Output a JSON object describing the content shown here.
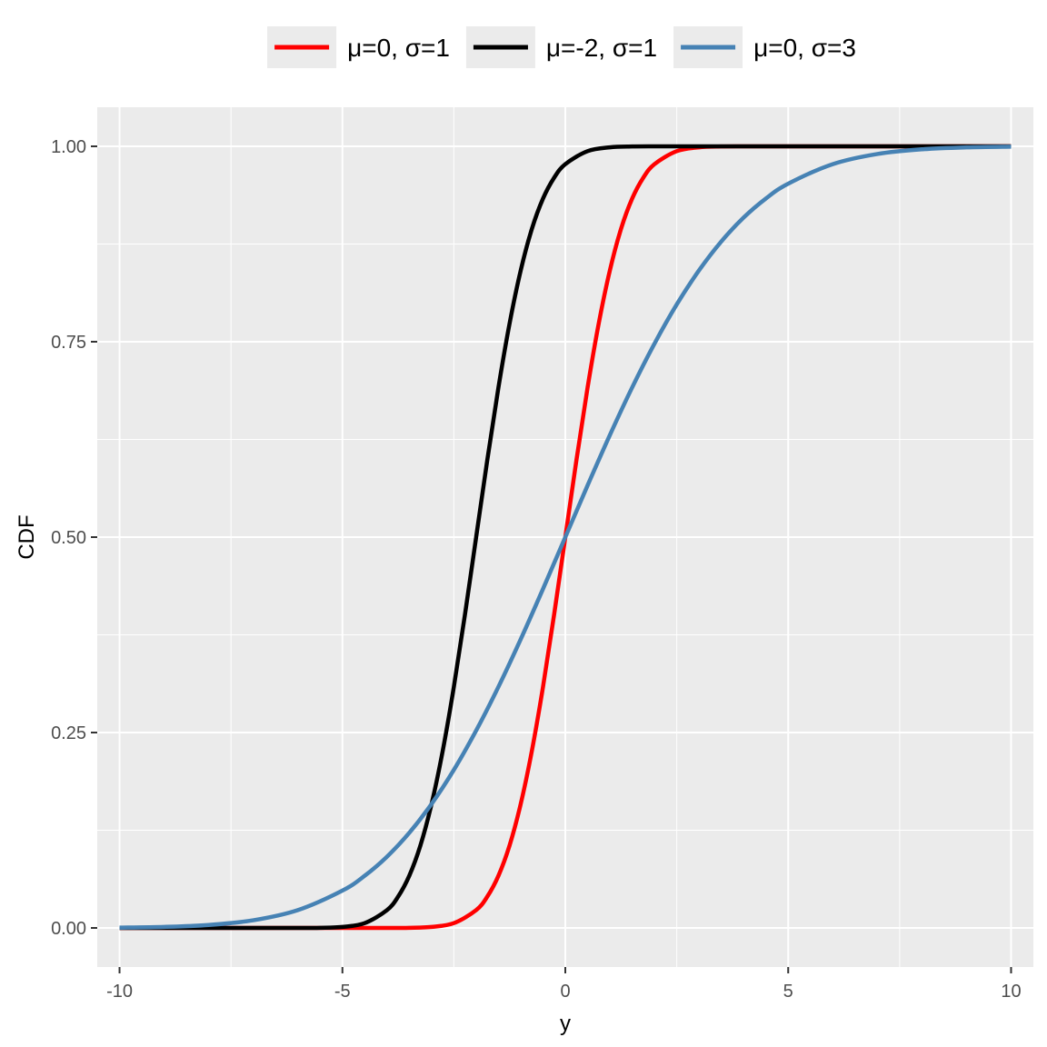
{
  "chart_data": {
    "type": "line",
    "title": "",
    "xlabel": "y",
    "ylabel": "CDF",
    "xlim": [
      -10.5,
      10.5
    ],
    "ylim": [
      -0.05,
      1.05
    ],
    "x_ticks": [
      -10,
      -5,
      0,
      5,
      10
    ],
    "x_tick_labels": [
      "-10",
      "-5",
      "0",
      "5",
      "10"
    ],
    "y_ticks": [
      0,
      0.25,
      0.5,
      0.75,
      1
    ],
    "y_tick_labels": [
      "0.00",
      "0.25",
      "0.50",
      "0.75",
      "1.00"
    ],
    "grid": true,
    "panel_background": "#ebebeb",
    "legend_position": "top",
    "series": [
      {
        "name": "μ=0, σ=1",
        "color": "#ff0000",
        "x": [
          -10,
          -6,
          -5,
          -4,
          -3.5,
          -3,
          -2.5,
          -2,
          -1.75,
          -1.5,
          -1.25,
          -1,
          -0.75,
          -0.5,
          -0.25,
          0,
          0.25,
          0.5,
          0.75,
          1,
          1.25,
          1.5,
          1.75,
          2,
          2.5,
          3,
          3.5,
          4,
          5,
          10
        ],
        "values": [
          0,
          0,
          0,
          0,
          0.0002,
          0.0013,
          0.0062,
          0.0228,
          0.0401,
          0.0668,
          0.1056,
          0.1587,
          0.2266,
          0.3085,
          0.4013,
          0.5,
          0.5987,
          0.6915,
          0.7734,
          0.8413,
          0.8944,
          0.9332,
          0.9599,
          0.9772,
          0.9938,
          0.9987,
          0.9998,
          1,
          1,
          1
        ]
      },
      {
        "name": "μ=-2, σ=1",
        "color": "#000000",
        "x": [
          -10,
          -7,
          -6,
          -5.5,
          -5,
          -4.5,
          -4,
          -3.75,
          -3.5,
          -3.25,
          -3,
          -2.75,
          -2.5,
          -2.25,
          -2,
          -1.75,
          -1.5,
          -1.25,
          -1,
          -0.75,
          -0.5,
          -0.25,
          0,
          0.5,
          1,
          1.5,
          2,
          3,
          10
        ],
        "values": [
          0,
          0,
          0,
          0.0002,
          0.0013,
          0.0062,
          0.0228,
          0.0401,
          0.0668,
          0.1056,
          0.1587,
          0.2266,
          0.3085,
          0.4013,
          0.5,
          0.5987,
          0.6915,
          0.7734,
          0.8413,
          0.8944,
          0.9332,
          0.9599,
          0.9772,
          0.9938,
          0.9987,
          0.9998,
          1,
          1,
          1
        ]
      },
      {
        "name": "μ=0, σ=3",
        "color": "#4682b4",
        "x": [
          -10,
          -9,
          -8,
          -7,
          -6,
          -5,
          -4.5,
          -4,
          -3.5,
          -3,
          -2.5,
          -2,
          -1.5,
          -1,
          -0.5,
          0,
          0.5,
          1,
          1.5,
          2,
          2.5,
          3,
          3.5,
          4,
          4.5,
          5,
          6,
          7,
          8,
          9,
          10
        ],
        "values": [
          0.0004,
          0.0013,
          0.0038,
          0.0098,
          0.0228,
          0.0478,
          0.0668,
          0.0912,
          0.1217,
          0.1587,
          0.2023,
          0.2525,
          0.3085,
          0.3694,
          0.4338,
          0.5,
          0.5662,
          0.6306,
          0.6915,
          0.7475,
          0.7977,
          0.8413,
          0.8783,
          0.9088,
          0.9332,
          0.9522,
          0.9772,
          0.9902,
          0.9962,
          0.9987,
          0.9996
        ]
      }
    ]
  }
}
